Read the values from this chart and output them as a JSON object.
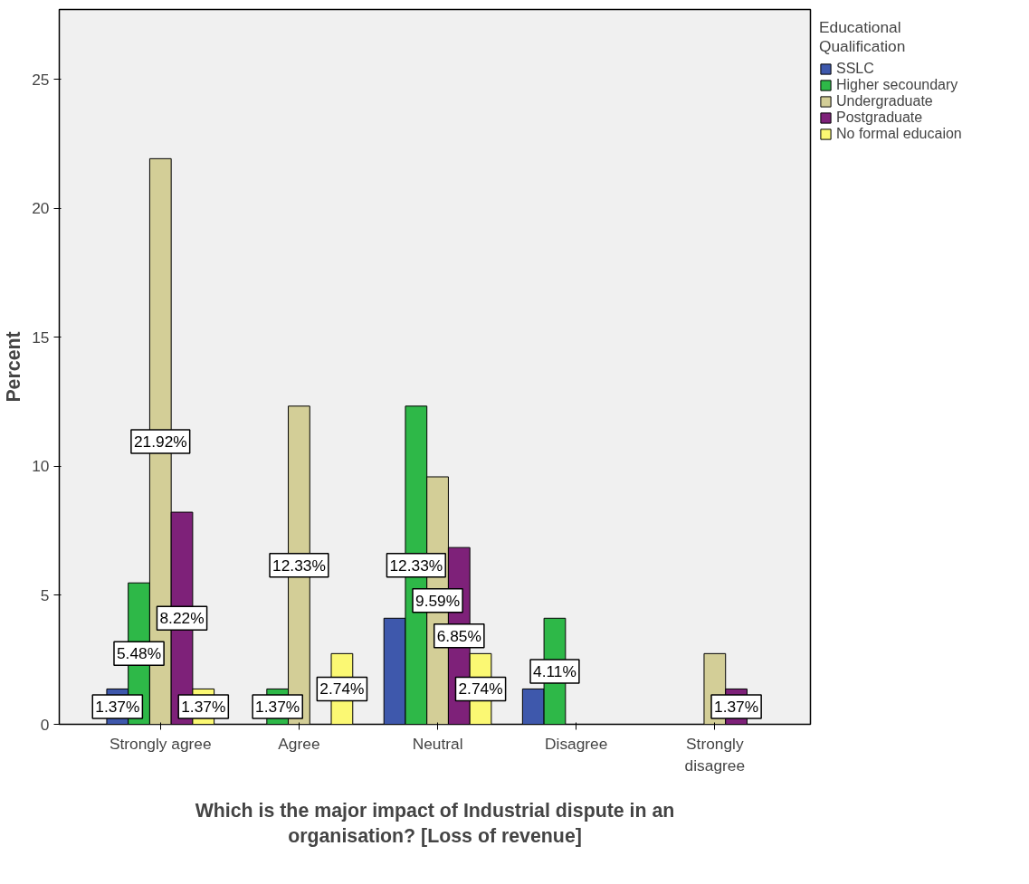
{
  "chart_data": {
    "type": "bar",
    "xlabel": "Which is the major impact of Industrial dispute in an organisation? [Loss of revenue]",
    "ylabel": "Percent",
    "legend_title": "Educational Qualification",
    "legend": "right",
    "grid": false,
    "categories": [
      "Strongly agree",
      "Agree",
      "Neutral",
      "Disagree",
      "Strongly disagree"
    ],
    "ylim": [
      0,
      27.7
    ],
    "yticks": [
      0,
      5,
      10,
      15,
      20,
      25
    ],
    "series": [
      {
        "name": "SSLC",
        "color": "#3e58ac",
        "values": [
          1.37,
          null,
          4.11,
          1.37,
          null
        ],
        "value_labels": [
          "1.37%",
          null,
          null,
          null,
          null
        ]
      },
      {
        "name": "Higher secoundary",
        "color": "#2eb848",
        "values": [
          5.48,
          1.37,
          12.33,
          4.11,
          null
        ],
        "value_labels": [
          "5.48%",
          "1.37%",
          "12.33%",
          "4.11%",
          null
        ]
      },
      {
        "name": "Undergraduate",
        "color": "#d3ce97",
        "values": [
          21.92,
          12.33,
          9.59,
          null,
          2.74
        ],
        "value_labels": [
          "21.92%",
          "12.33%",
          "9.59%",
          null,
          null
        ]
      },
      {
        "name": "Postgraduate",
        "color": "#7e2179",
        "values": [
          8.22,
          null,
          6.85,
          null,
          1.37
        ],
        "value_labels": [
          "8.22%",
          null,
          "6.85%",
          null,
          "1.37%"
        ]
      },
      {
        "name": "No formal educaion",
        "color": "#fbf873",
        "values": [
          1.37,
          2.74,
          2.74,
          null,
          null
        ],
        "value_labels": [
          "1.37%",
          "2.74%",
          "2.74%",
          null,
          null
        ]
      }
    ]
  }
}
